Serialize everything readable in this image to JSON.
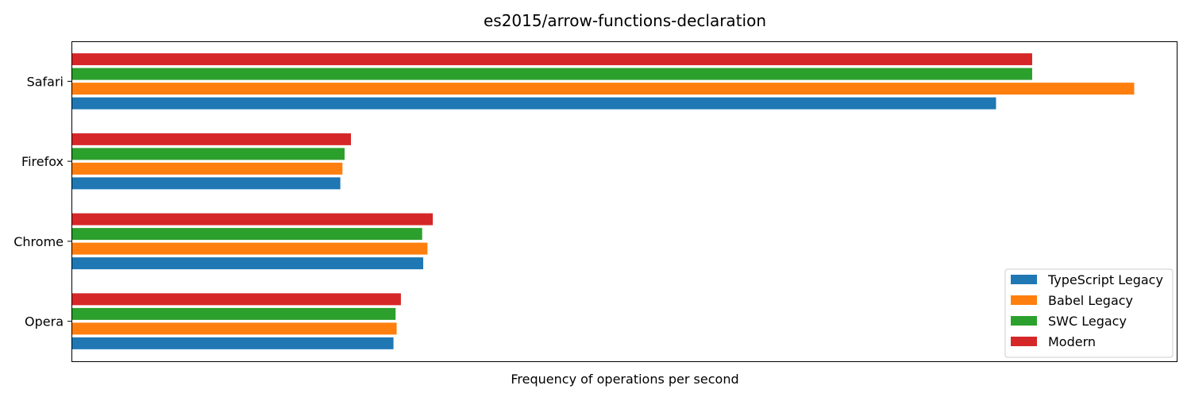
{
  "chart_data": {
    "type": "bar",
    "orientation": "horizontal",
    "title": "es2015/arrow-functions-declaration",
    "xlabel": "Frequency of operations per second",
    "ylabel": "",
    "x_ticks_shown": false,
    "grid": false,
    "legend_position": "bottom-right",
    "xlim": [
      0,
      1.04
    ],
    "categories": [
      "Opera",
      "Chrome",
      "Firefox",
      "Safari"
    ],
    "series": [
      {
        "name": "TypeScript Legacy",
        "color": "#1f77b4",
        "values": [
          0.303,
          0.331,
          0.253,
          0.87
        ]
      },
      {
        "name": "Babel Legacy",
        "color": "#ff7f0e",
        "values": [
          0.306,
          0.335,
          0.255,
          1.0
        ]
      },
      {
        "name": "SWC Legacy",
        "color": "#2ca02c",
        "values": [
          0.305,
          0.33,
          0.257,
          0.904
        ]
      },
      {
        "name": "Modern",
        "color": "#d62728",
        "values": [
          0.31,
          0.34,
          0.263,
          0.904
        ]
      }
    ]
  }
}
